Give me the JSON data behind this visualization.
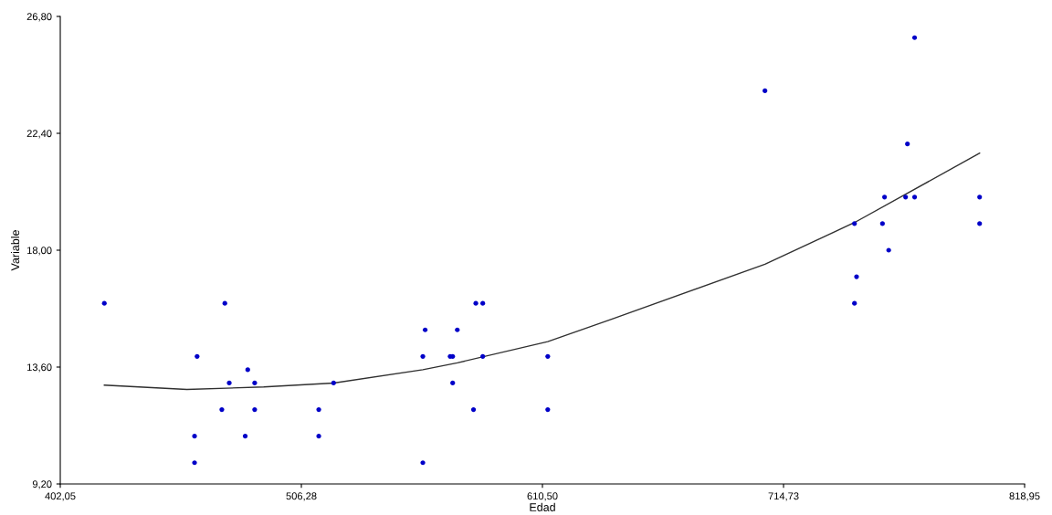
{
  "chart_data": {
    "type": "scatter",
    "xlabel": "Edad",
    "ylabel": "Variable",
    "grid": false,
    "legend": false,
    "xlim": [
      402.05,
      818.95
    ],
    "ylim": [
      9.2,
      26.8
    ],
    "xticks": [
      {
        "value": 402.05,
        "label": "402,05"
      },
      {
        "value": 506.28,
        "label": "506,28"
      },
      {
        "value": 610.5,
        "label": "610,50"
      },
      {
        "value": 714.73,
        "label": "714,73"
      },
      {
        "value": 818.95,
        "label": "818,95"
      }
    ],
    "yticks": [
      {
        "value": 9.2,
        "label": "9,20"
      },
      {
        "value": 13.6,
        "label": "13,60"
      },
      {
        "value": 18.0,
        "label": "18,00"
      },
      {
        "value": 22.4,
        "label": "22,40"
      },
      {
        "value": 26.8,
        "label": "26,80"
      }
    ],
    "series": [
      {
        "color": "#0000c8",
        "marker": "circle",
        "x": [
          421.1,
          473.2,
          475.1,
          461.2,
          483.1,
          486.1,
          520.2,
          471.9,
          486.1,
          513.8,
          460.1,
          482.0,
          513.8,
          460.1,
          581.7,
          584.7,
          559.8,
          573.7,
          558.8,
          570.6,
          571.7,
          584.7,
          612.8,
          571.7,
          580.7,
          612.8,
          558.8,
          771.4,
          706.7,
          768.3,
          758.4,
          767.5,
          771.4,
          799.5,
          745.4,
          757.5,
          799.5,
          760.2,
          746.3,
          745.4
        ],
        "values": [
          16,
          16,
          13,
          14,
          13.5,
          13,
          13,
          12,
          12,
          12,
          11,
          11,
          11,
          10,
          16,
          16,
          15,
          15,
          14,
          14,
          14,
          14,
          14,
          13,
          12,
          12,
          10,
          26,
          24,
          22,
          20,
          20,
          20,
          20,
          19,
          19,
          19,
          18,
          17,
          16
        ]
      },
      {
        "type": "line",
        "color": "#303030",
        "marker": "none",
        "line_style": "solid",
        "x": [
          421.1,
          456.8,
          490.0,
          520.2,
          558.8,
          573.7,
          612.8,
          640.9,
          706.7,
          745.4,
          799.5
        ],
        "values": [
          12.92,
          12.76,
          12.85,
          13.0,
          13.5,
          13.76,
          14.56,
          15.42,
          17.47,
          19.04,
          21.65
        ]
      }
    ]
  }
}
